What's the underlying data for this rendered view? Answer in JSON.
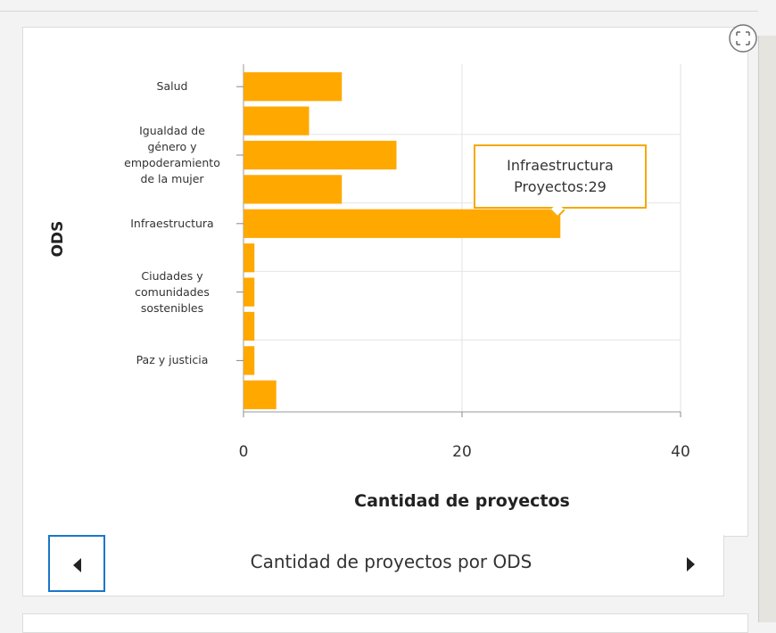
{
  "chart_data": {
    "type": "barh",
    "categories": [
      "Salud",
      null,
      "Igualdad de género y empoderamiento de la mujer",
      null,
      "Infraestructura",
      null,
      "Ciudades y comunidades sostenibles",
      null,
      "Paz y justicia",
      null
    ],
    "values": [
      9,
      6,
      14,
      9,
      29,
      1,
      1,
      1,
      1,
      3
    ],
    "color": "#ffa800",
    "xlim": [
      0,
      40
    ],
    "xticks": [
      0,
      20,
      40
    ],
    "grid": true,
    "xlabel": "Cantidad de proyectos",
    "ylabel": "ODS",
    "tooltip": {
      "title": "Infraestructura",
      "text": "Proyectos:29"
    }
  },
  "footer": {
    "title": "Cantidad de proyectos por ODS"
  }
}
